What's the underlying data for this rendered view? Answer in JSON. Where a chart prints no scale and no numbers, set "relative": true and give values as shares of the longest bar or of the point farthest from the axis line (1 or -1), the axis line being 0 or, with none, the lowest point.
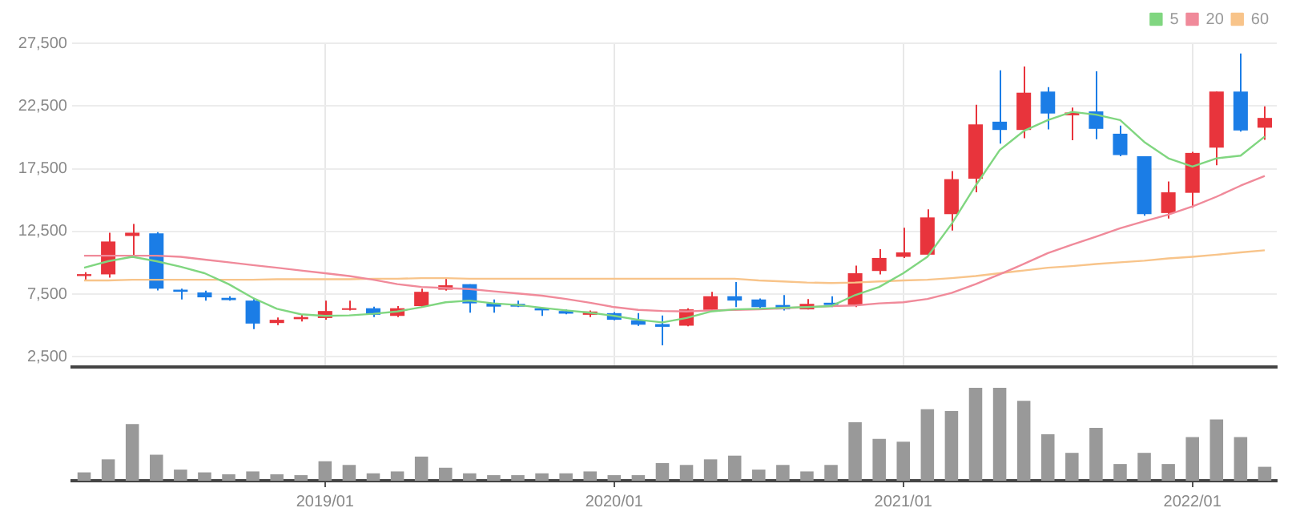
{
  "chart_data": [
    {
      "type": "candlestick",
      "categories": [
        null,
        null,
        null,
        null,
        null,
        null,
        null,
        null,
        null,
        null,
        "2019/01",
        null,
        null,
        null,
        null,
        null,
        null,
        null,
        null,
        null,
        null,
        null,
        "2020/01",
        null,
        null,
        null,
        null,
        null,
        null,
        null,
        null,
        null,
        null,
        null,
        "2021/01",
        null,
        null,
        null,
        null,
        null,
        null,
        null,
        null,
        null,
        null,
        null,
        "2022/01",
        null,
        null,
        null
      ],
      "ohlc": [
        [
          8950,
          9250,
          8650,
          9100
        ],
        [
          9080,
          12400,
          8820,
          11700
        ],
        [
          12140,
          13100,
          10480,
          12400
        ],
        [
          12350,
          12450,
          7800,
          7950
        ],
        [
          7860,
          7950,
          7080,
          7690
        ],
        [
          7640,
          7780,
          6990,
          7250
        ],
        [
          7210,
          7340,
          6990,
          7030
        ],
        [
          6990,
          7120,
          4720,
          5160
        ],
        [
          5200,
          5640,
          5030,
          5460
        ],
        [
          5510,
          5860,
          5330,
          5680
        ],
        [
          5600,
          6990,
          5460,
          6160
        ],
        [
          6250,
          6990,
          6210,
          6380
        ],
        [
          6380,
          6510,
          5680,
          5860
        ],
        [
          5770,
          6550,
          5680,
          6380
        ],
        [
          6550,
          7950,
          6470,
          7690
        ],
        [
          7860,
          8730,
          7780,
          8210
        ],
        [
          8300,
          8300,
          6030,
          6770
        ],
        [
          6770,
          7080,
          6030,
          6510
        ],
        [
          6730,
          6990,
          6470,
          6510
        ],
        [
          6380,
          6380,
          5770,
          6210
        ],
        [
          6160,
          6290,
          5900,
          5950
        ],
        [
          5860,
          6210,
          5680,
          6120
        ],
        [
          5990,
          6070,
          5420,
          5460
        ],
        [
          5420,
          5990,
          4980,
          5070
        ],
        [
          5120,
          5810,
          3420,
          4900
        ],
        [
          4990,
          6380,
          4940,
          6290
        ],
        [
          6250,
          7690,
          6160,
          7340
        ],
        [
          7340,
          8470,
          6470,
          6990
        ],
        [
          7080,
          7160,
          6290,
          6470
        ],
        [
          6640,
          7430,
          6210,
          6290
        ],
        [
          6290,
          7120,
          6290,
          6730
        ],
        [
          6820,
          7340,
          6470,
          6640
        ],
        [
          6640,
          9780,
          6470,
          9170
        ],
        [
          9350,
          11090,
          9080,
          10390
        ],
        [
          10480,
          12790,
          10390,
          10830
        ],
        [
          10650,
          14270,
          10570,
          13620
        ],
        [
          13880,
          17320,
          12570,
          16670
        ],
        [
          16710,
          22600,
          15620,
          21030
        ],
        [
          21250,
          25350,
          19500,
          20590
        ],
        [
          20590,
          25650,
          19940,
          23560
        ],
        [
          23650,
          24000,
          20640,
          21900
        ],
        [
          21760,
          22380,
          19770,
          21980
        ],
        [
          22070,
          25260,
          19850,
          20680
        ],
        [
          20290,
          20940,
          18500,
          18590
        ],
        [
          18500,
          18500,
          13750,
          13880
        ],
        [
          13970,
          16490,
          13530,
          15620
        ],
        [
          15580,
          18850,
          14400,
          18760
        ],
        [
          19180,
          23650,
          17780,
          23650
        ],
        [
          23650,
          26690,
          20460,
          20550
        ],
        [
          20770,
          22470,
          19800,
          21550
        ]
      ],
      "colors": [
        "#e8343c",
        "#e8343c",
        "#e8343c",
        "#1b7de6",
        "#1b7de6",
        "#1b7de6",
        "#1b7de6",
        "#1b7de6",
        "#e8343c",
        "#e8343c",
        "#e8343c",
        "#e8343c",
        "#1b7de6",
        "#e8343c",
        "#e8343c",
        "#e8343c",
        "#1b7de6",
        "#1b7de6",
        "#1b7de6",
        "#1b7de6",
        "#1b7de6",
        "#e8343c",
        "#1b7de6",
        "#1b7de6",
        "#1b7de6",
        "#e8343c",
        "#e8343c",
        "#1b7de6",
        "#1b7de6",
        "#1b7de6",
        "#e8343c",
        "#1b7de6",
        "#e8343c",
        "#e8343c",
        "#e8343c",
        "#e8343c",
        "#e8343c",
        "#e8343c",
        "#1b7de6",
        "#e8343c",
        "#1b7de6",
        "#e8343c",
        "#1b7de6",
        "#1b7de6",
        "#1b7de6",
        "#e8343c",
        "#e8343c",
        "#e8343c",
        "#1b7de6",
        "#e8343c"
      ],
      "series": [
        {
          "type": "line",
          "name": "5",
          "color": "#80d680",
          "values": [
            9610,
            10130,
            10480,
            10130,
            9690,
            9170,
            8300,
            7210,
            6340,
            5900,
            5770,
            5810,
            5940,
            6120,
            6470,
            6860,
            6990,
            6770,
            6640,
            6420,
            6210,
            6030,
            5770,
            5460,
            5250,
            5600,
            6120,
            6290,
            6340,
            6420,
            6470,
            6550,
            7430,
            8080,
            9170,
            10480,
            13090,
            16150,
            18980,
            20510,
            21380,
            22030,
            21810,
            21380,
            19630,
            18330,
            17670,
            18330,
            18540,
            20070
          ]
        },
        {
          "type": "line",
          "name": "20",
          "color": "#f08a9a",
          "values": [
            10570,
            10570,
            10570,
            10570,
            10480,
            10260,
            10040,
            9820,
            9610,
            9390,
            9170,
            8950,
            8650,
            8300,
            8080,
            7990,
            7910,
            7730,
            7560,
            7380,
            7120,
            6820,
            6470,
            6250,
            6160,
            6120,
            6210,
            6250,
            6290,
            6380,
            6470,
            6550,
            6600,
            6770,
            6860,
            7120,
            7600,
            8300,
            9080,
            9910,
            10780,
            11440,
            12090,
            12750,
            13310,
            13840,
            14490,
            15270,
            16150,
            16930
          ]
        },
        {
          "type": "line",
          "name": "60",
          "color": "#f8c48a",
          "values": [
            8600,
            8600,
            8650,
            8650,
            8650,
            8650,
            8650,
            8650,
            8690,
            8690,
            8690,
            8690,
            8730,
            8730,
            8780,
            8780,
            8730,
            8730,
            8730,
            8730,
            8730,
            8730,
            8730,
            8730,
            8730,
            8730,
            8730,
            8730,
            8600,
            8520,
            8430,
            8390,
            8430,
            8520,
            8600,
            8650,
            8780,
            8950,
            9170,
            9390,
            9610,
            9740,
            9910,
            10040,
            10170,
            10350,
            10480,
            10650,
            10830,
            11000
          ]
        }
      ],
      "ylim": [
        1700,
        27500
      ],
      "yticks": [
        {
          "value": 2500,
          "label": "2,500"
        },
        {
          "value": 7500,
          "label": "7,500"
        },
        {
          "value": 12500,
          "label": "12,500"
        },
        {
          "value": 17500,
          "label": "17,500"
        },
        {
          "value": 22500,
          "label": "22,500"
        },
        {
          "value": 27500,
          "label": "27,500"
        }
      ],
      "grid": true,
      "legend": "top right",
      "marker": "none",
      "line_style": "solid",
      "tick_labels": "y"
    },
    {
      "type": "bar",
      "relative": true,
      "categories": [
        null,
        null,
        null,
        null,
        null,
        null,
        null,
        null,
        null,
        null,
        "2019/01",
        null,
        null,
        null,
        null,
        null,
        null,
        null,
        null,
        null,
        null,
        null,
        "2020/01",
        null,
        null,
        null,
        null,
        null,
        null,
        null,
        null,
        null,
        null,
        null,
        "2021/01",
        null,
        null,
        null,
        null,
        null,
        null,
        null,
        null,
        null,
        null,
        null,
        "2022/01",
        null,
        null,
        null
      ],
      "values": [
        0.09,
        0.23,
        0.61,
        0.28,
        0.12,
        0.09,
        0.07,
        0.1,
        0.07,
        0.06,
        0.21,
        0.17,
        0.08,
        0.1,
        0.26,
        0.14,
        0.08,
        0.06,
        0.06,
        0.08,
        0.08,
        0.1,
        0.06,
        0.06,
        0.19,
        0.17,
        0.23,
        0.27,
        0.12,
        0.17,
        0.1,
        0.17,
        0.63,
        0.45,
        0.42,
        0.77,
        0.75,
        1,
        1,
        0.86,
        0.5,
        0.3,
        0.57,
        0.18,
        0.3,
        0.18,
        0.47,
        0.66,
        0.47,
        0.15
      ],
      "color": "#999999",
      "tick_labels": "x"
    }
  ]
}
